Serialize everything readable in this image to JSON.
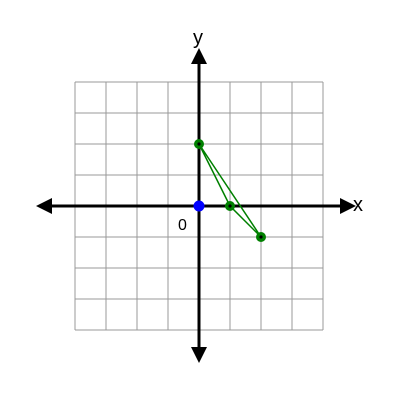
{
  "chart_data": {
    "type": "scatter",
    "title": "",
    "xlabel": "x",
    "ylabel": "y",
    "origin_label": "0",
    "xlim": [
      -4,
      4
    ],
    "ylim": [
      -4,
      4
    ],
    "grid": true,
    "axis_color": "#000000",
    "grid_color": "#999999",
    "origin_point": {
      "x": 0,
      "y": 0,
      "color": "#0000ff"
    },
    "triangle": {
      "color": "#008000",
      "vertices": [
        {
          "x": 0,
          "y": 2
        },
        {
          "x": 1,
          "y": 0
        },
        {
          "x": 2,
          "y": -1
        }
      ]
    }
  }
}
